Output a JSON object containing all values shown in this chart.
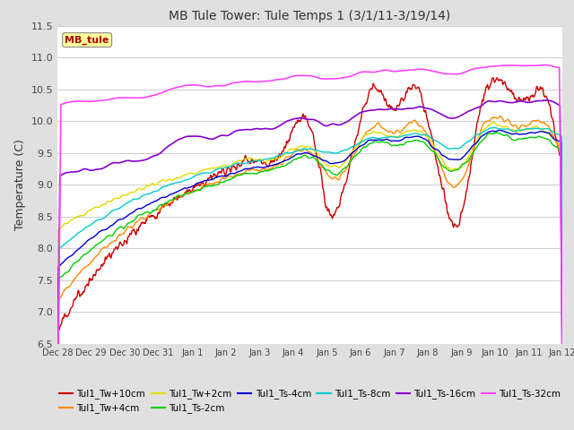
{
  "title": "MB Tule Tower: Tule Temps 1 (3/1/11-3/19/14)",
  "ylabel": "Temperature (C)",
  "ylim": [
    6.5,
    11.5
  ],
  "yticks": [
    6.5,
    7.0,
    7.5,
    8.0,
    8.5,
    9.0,
    9.5,
    10.0,
    10.5,
    11.0,
    11.5
  ],
  "xtick_labels": [
    "Dec 28",
    "Dec 29",
    "Dec 30",
    "Dec 31",
    "Jan 1",
    "Jan 2",
    "Jan 3",
    "Jan 4",
    "Jan 5",
    "Jan 6",
    "Jan 7",
    "Jan 8",
    "Jan 9",
    "Jan 10",
    "Jan 11",
    "Jan 12"
  ],
  "legend_box_label": "MB_tule",
  "legend_box_color": "#aa0000",
  "legend_box_bg": "#ffff99",
  "series_names": [
    "Tul1_Tw+10cm",
    "Tul1_Tw+4cm",
    "Tul1_Tw+2cm",
    "Tul1_Ts-2cm",
    "Tul1_Ts-4cm",
    "Tul1_Ts-8cm",
    "Tul1_Ts-16cm",
    "Tul1_Ts-32cm"
  ],
  "series_colors": [
    "#cc0000",
    "#ff8800",
    "#dddd00",
    "#00cc00",
    "#0000cc",
    "#00cccc",
    "#8800cc",
    "#ff44ff"
  ],
  "bg_color": "#e0e0e0",
  "plot_bg_color": "#ffffff",
  "grid_color": "#cccccc"
}
